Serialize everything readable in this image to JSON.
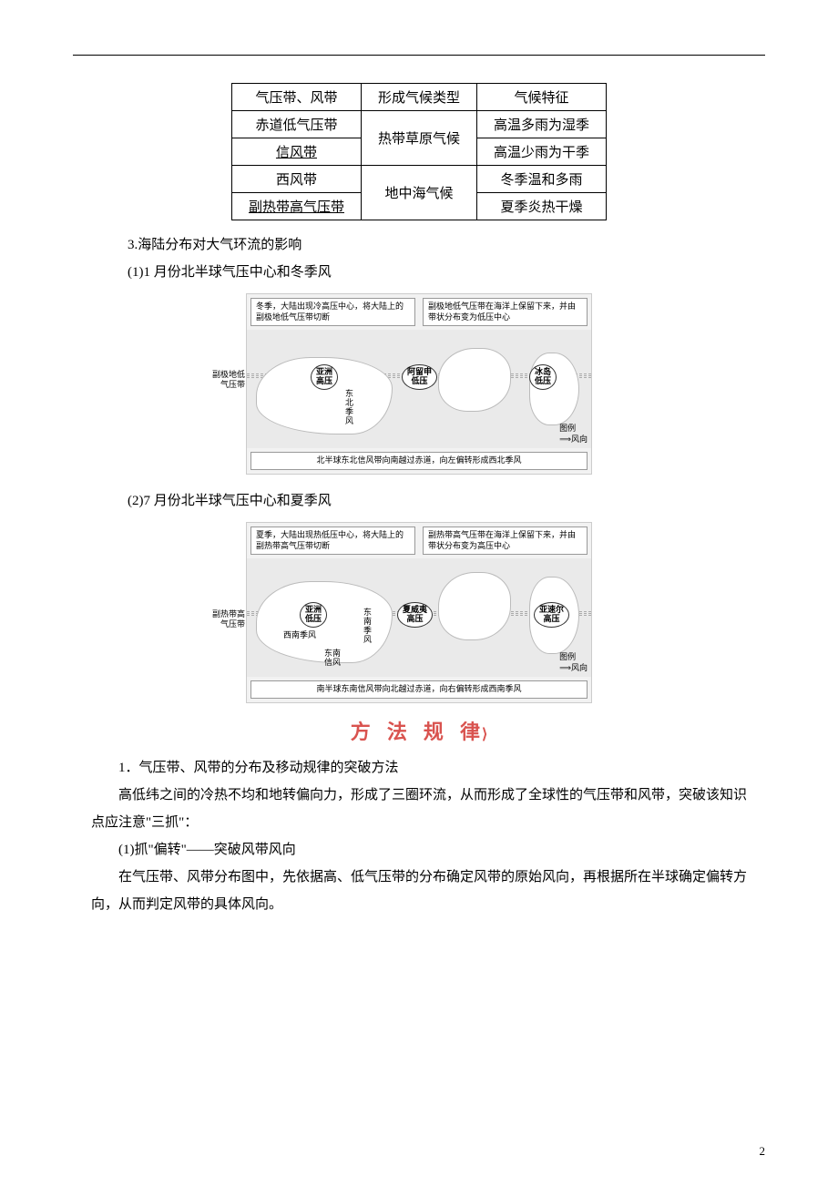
{
  "table": {
    "headers": [
      "气压带、风带",
      "形成气候类型",
      "气候特征"
    ],
    "row1": {
      "belt": "赤道低气压带",
      "climate": "热带草原气候",
      "feature": "高温多雨为湿季"
    },
    "row2": {
      "belt": "信风带",
      "feature": "高温少雨为干季"
    },
    "row3": {
      "belt": "西风带",
      "climate": "地中海气候",
      "feature": "冬季温和多雨"
    },
    "row4": {
      "belt": "副热带高气压带",
      "feature": "夏季炎热干燥"
    }
  },
  "s3": {
    "title": "3.海陆分布对大气环流的影响",
    "p1_title": "(1)1 月份北半球气压中心和冬季风",
    "p2_title": "(2)7 月份北半球气压中心和夏季风"
  },
  "map1": {
    "callout_left": "冬季，大陆出现冷高压中心，将大陆上的副极地低气压带切断",
    "callout_right": "副极地低气压带在海洋上保留下来，并由带状分布变为低压中心",
    "side": "副极地低\n气压带",
    "b1": "亚洲\n高压",
    "b2": "阿留申\n低压",
    "b3": "冰岛\n低压",
    "wind": "东\n北\n季\n风",
    "legend_title": "图例",
    "legend_wind": "⟹风向",
    "footer": "北半球东北信风带向南越过赤道，向左偏转形成西北季风"
  },
  "map2": {
    "callout_left": "夏季，大陆出现热低压中心，将大陆上的副热带高气压带切断",
    "callout_right": "副热带高气压带在海洋上保留下来，并由带状分布变为高压中心",
    "side": "副热带高\n气压带",
    "b1": "亚洲\n低压",
    "b2": "夏威夷\n高压",
    "b3": "亚速尔\n高压",
    "wind1": "西南季风",
    "wind2": "东\n南\n季\n风",
    "wind3": "东南\n信风",
    "legend_title": "图例",
    "legend_wind": "⟹风向",
    "footer": "南半球东南信风带向北越过赤道，向右偏转形成西南季风"
  },
  "methods": {
    "heading": "方 法 规 律",
    "p1_title": "1．气压带、风带的分布及移动规律的突破方法",
    "p1_body": "高低纬之间的冷热不均和地转偏向力，形成了三圈环流，从而形成了全球性的气压带和风带，突破该知识点应注意\"三抓\"：",
    "p2_title": "(1)抓\"偏转\"——突破风带风向",
    "p2_body": "在气压带、风带分布图中，先依据高、低气压带的分布确定风带的原始风向，再根据所在半球确定偏转方向，从而判定风带的具体风向。"
  },
  "page_number": "2"
}
